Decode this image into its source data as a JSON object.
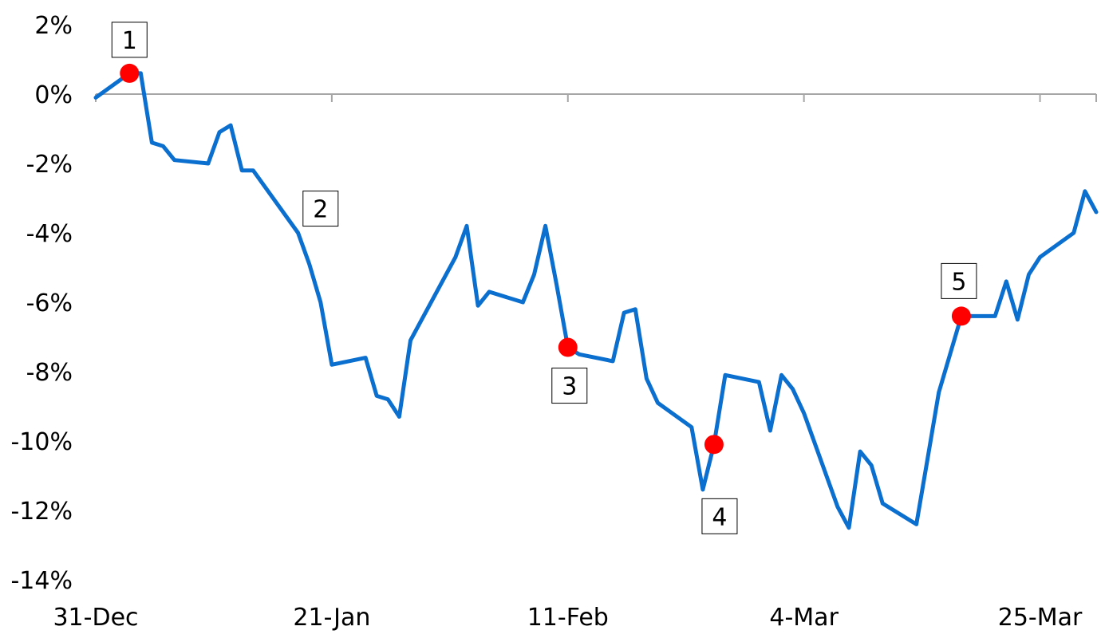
{
  "chart_data": {
    "type": "line",
    "title": "",
    "xlabel": "",
    "ylabel": "",
    "ylim": [
      -14,
      2
    ],
    "y_ticks": [
      {
        "value": 2,
        "label": "2%"
      },
      {
        "value": 0,
        "label": "0%"
      },
      {
        "value": -2,
        "label": "-2%"
      },
      {
        "value": -4,
        "label": "-4%"
      },
      {
        "value": -6,
        "label": "-6%"
      },
      {
        "value": -8,
        "label": "-8%"
      },
      {
        "value": -10,
        "label": "-10%"
      },
      {
        "value": -12,
        "label": "-12%"
      },
      {
        "value": -14,
        "label": "-14%"
      }
    ],
    "x_ticks": [
      {
        "value": 0,
        "label": "31-Dec"
      },
      {
        "value": 21,
        "label": "21-Jan"
      },
      {
        "value": 42,
        "label": "11-Feb"
      },
      {
        "value": 63,
        "label": "4-Mar"
      },
      {
        "value": 84,
        "label": "25-Mar"
      }
    ],
    "grid": false,
    "colors": {
      "line": "#0a6fcf",
      "marker": "#ff0000",
      "axis": "#a6a6a6"
    },
    "series": [
      {
        "values": [
          {
            "x": 0,
            "y": -0.1
          },
          {
            "x": 3,
            "y": 0.6
          },
          {
            "x": 4,
            "y": 0.6
          },
          {
            "x": 5,
            "y": -1.4
          },
          {
            "x": 6,
            "y": -1.5
          },
          {
            "x": 7,
            "y": -1.9
          },
          {
            "x": 10,
            "y": -2.0
          },
          {
            "x": 11,
            "y": -1.1
          },
          {
            "x": 12,
            "y": -0.9
          },
          {
            "x": 13,
            "y": -2.2
          },
          {
            "x": 14,
            "y": -2.2
          },
          {
            "x": 18,
            "y": -4.0
          },
          {
            "x": 19,
            "y": -4.9
          },
          {
            "x": 20,
            "y": -6.0
          },
          {
            "x": 21,
            "y": -7.8
          },
          {
            "x": 24,
            "y": -7.6
          },
          {
            "x": 25,
            "y": -8.7
          },
          {
            "x": 26,
            "y": -8.8
          },
          {
            "x": 27,
            "y": -9.3
          },
          {
            "x": 28,
            "y": -7.1
          },
          {
            "x": 32,
            "y": -4.7
          },
          {
            "x": 33,
            "y": -3.8
          },
          {
            "x": 34,
            "y": -6.1
          },
          {
            "x": 35,
            "y": -5.7
          },
          {
            "x": 38,
            "y": -6.0
          },
          {
            "x": 39,
            "y": -5.2
          },
          {
            "x": 40,
            "y": -3.8
          },
          {
            "x": 41,
            "y": -5.5
          },
          {
            "x": 42,
            "y": -7.3
          },
          {
            "x": 43,
            "y": -7.5
          },
          {
            "x": 46,
            "y": -7.7
          },
          {
            "x": 47,
            "y": -6.3
          },
          {
            "x": 48,
            "y": -6.2
          },
          {
            "x": 49,
            "y": -8.2
          },
          {
            "x": 50,
            "y": -8.9
          },
          {
            "x": 53,
            "y": -9.6
          },
          {
            "x": 54,
            "y": -11.4
          },
          {
            "x": 55,
            "y": -10.1
          },
          {
            "x": 56,
            "y": -8.1
          },
          {
            "x": 59,
            "y": -8.3
          },
          {
            "x": 60,
            "y": -9.7
          },
          {
            "x": 61,
            "y": -8.1
          },
          {
            "x": 62,
            "y": -8.5
          },
          {
            "x": 63,
            "y": -9.2
          },
          {
            "x": 66,
            "y": -11.9
          },
          {
            "x": 67,
            "y": -12.5
          },
          {
            "x": 68,
            "y": -10.3
          },
          {
            "x": 69,
            "y": -10.7
          },
          {
            "x": 70,
            "y": -11.8
          },
          {
            "x": 73,
            "y": -12.4
          },
          {
            "x": 74,
            "y": -10.5
          },
          {
            "x": 75,
            "y": -8.6
          },
          {
            "x": 77,
            "y": -6.4
          },
          {
            "x": 80,
            "y": -6.4
          },
          {
            "x": 81,
            "y": -5.4
          },
          {
            "x": 82,
            "y": -6.5
          },
          {
            "x": 83,
            "y": -5.2
          },
          {
            "x": 84,
            "y": -4.7
          },
          {
            "x": 87,
            "y": -4.0
          },
          {
            "x": 88,
            "y": -2.8
          },
          {
            "x": 89,
            "y": -3.4
          }
        ]
      }
    ],
    "annotations": [
      {
        "label": "1",
        "x": 3,
        "y": 0.6,
        "marker": true
      },
      {
        "label": "2",
        "x": 20,
        "y": -3.3,
        "marker": false
      },
      {
        "label": "3",
        "x": 42,
        "y": -7.3,
        "marker": true
      },
      {
        "label": "4",
        "x": 55,
        "y": -10.1,
        "marker": true
      },
      {
        "label": "5",
        "x": 77,
        "y": -6.4,
        "marker": true
      }
    ]
  }
}
